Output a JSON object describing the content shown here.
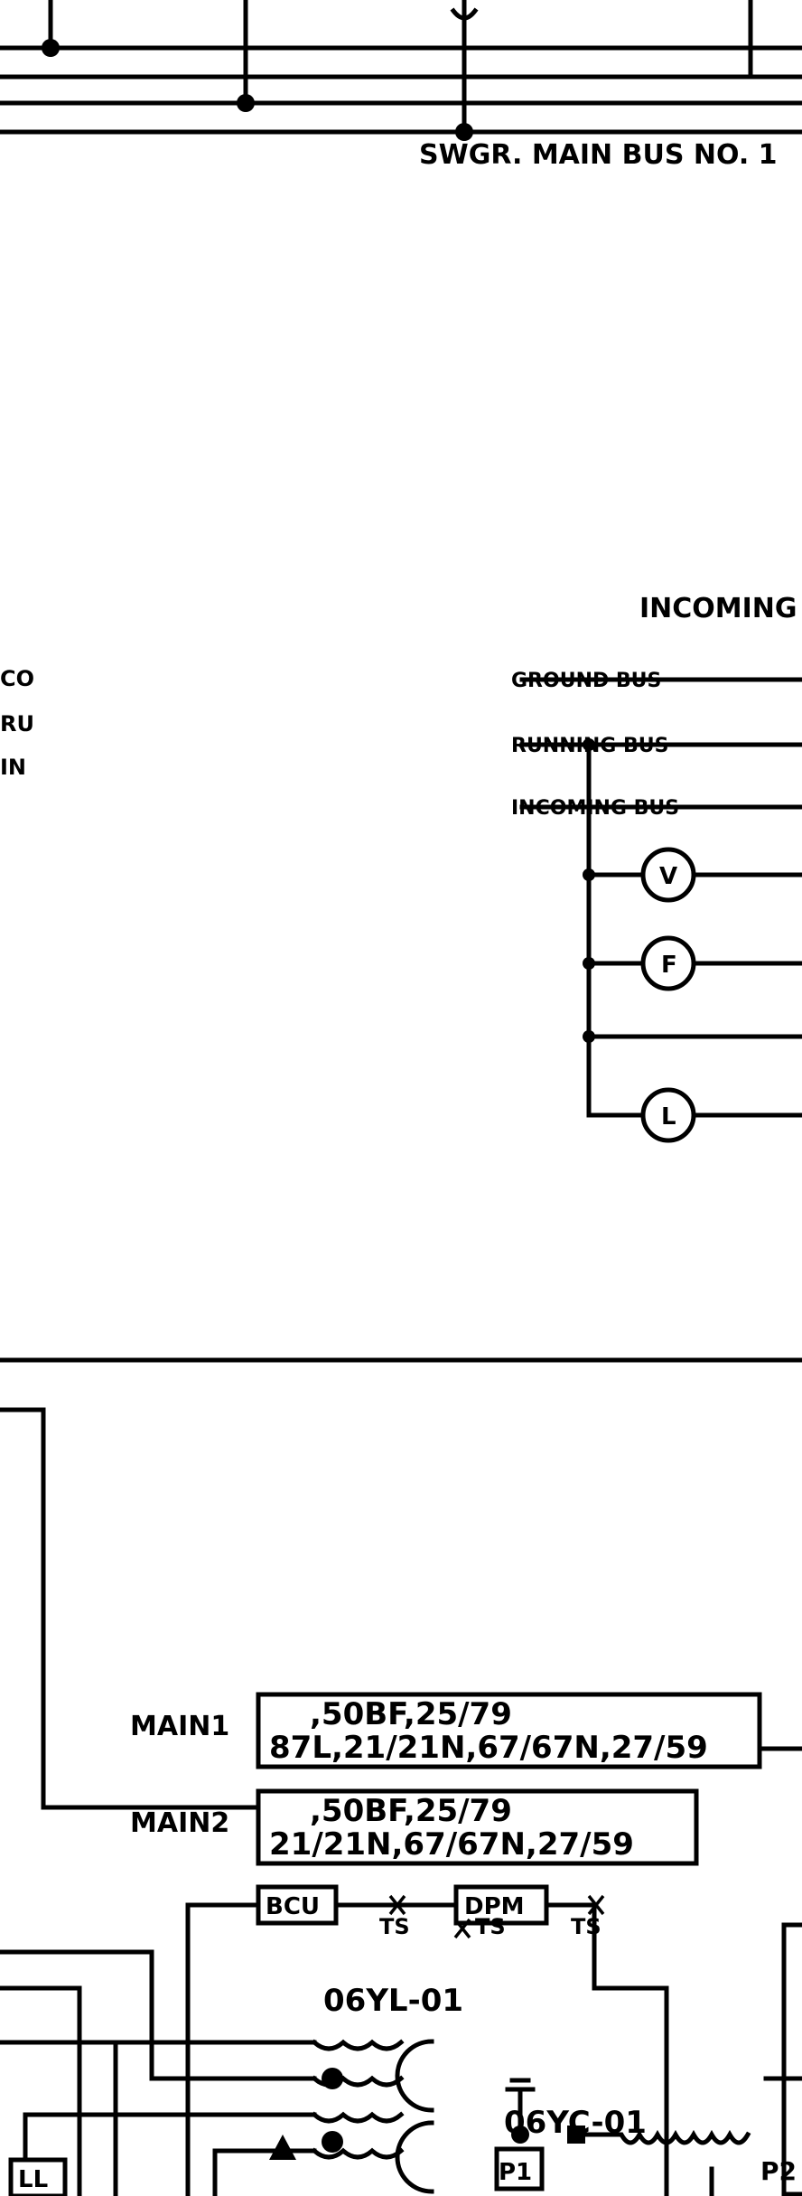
{
  "labels": {
    "main_bus": "SWGR. MAIN BUS NO. 1",
    "incoming_bus_header": "INCOMING BUS",
    "ground_bus": "GROUND BUS",
    "running_bus": "RUNNING BUS",
    "incoming_bus": "INCOMING BUS",
    "edge_co": "CO",
    "edge_ru": "RU",
    "edge_in": "IN",
    "meter_v": "V",
    "meter_f": "F",
    "meter_l": "L",
    "relay_main1_functions_line1": "87L,21/21N,67/67N,27/59",
    "relay_main1_functions_line2": ",50BF,25/79",
    "relay_main1_name": "MAIN1",
    "relay_main2_functions_line1": "21/21N,67/67N,27/59",
    "relay_main2_functions_line2": ",50BF,25/79",
    "relay_main2_name": "MAIN2",
    "bcu": "BCU",
    "dpm": "DPM",
    "ts_1": "TS",
    "ts_2": "TS",
    "ts_3": "TS",
    "ct_label": "06YL-01",
    "vt_label": "06YC-01",
    "p1": "P1",
    "p2": "P2",
    "ll": "LL"
  }
}
